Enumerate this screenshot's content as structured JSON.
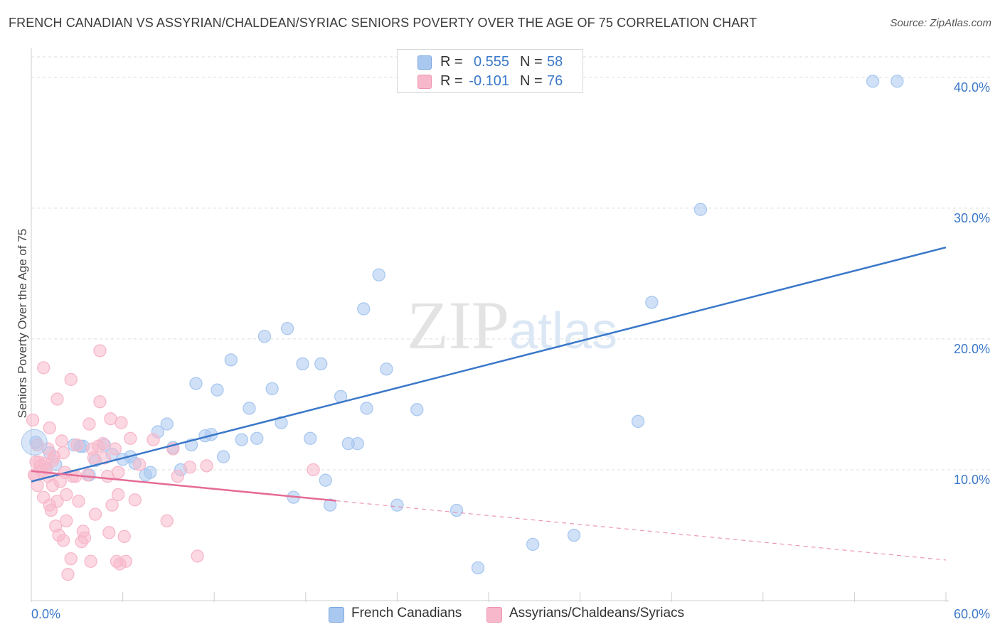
{
  "title": "FRENCH CANADIAN VS ASSYRIAN/CHALDEAN/SYRIAC SENIORS POVERTY OVER THE AGE OF 75 CORRELATION CHART",
  "source": "Source: ZipAtlas.com",
  "watermark": "ZIPatlas",
  "legend": {
    "rows": [
      {
        "r_label": "R =",
        "r_value": "0.555",
        "n_label": "N =",
        "n_value": "58",
        "color": "#a9c8f0"
      },
      {
        "r_label": "R =",
        "r_value": "-0.101",
        "n_label": "N =",
        "n_value": "76",
        "color": "#f7b8cb"
      }
    ]
  },
  "bottom_legend": [
    {
      "label": "French Canadians",
      "color": "#a9c8f0"
    },
    {
      "label": "Assyrians/Chaldeans/Syriacs",
      "color": "#f7b8cb"
    }
  ],
  "chart_data": {
    "type": "scatter",
    "ylabel": "Seniors Poverty Over the Age of 75",
    "xlim": [
      0,
      60
    ],
    "ylim": [
      0,
      42
    ],
    "x_tick_labels": [
      "0.0%",
      "60.0%"
    ],
    "y_ticks": [
      10,
      20,
      30,
      40
    ],
    "y_tick_labels": [
      "10.0%",
      "20.0%",
      "30.0%",
      "40.0%"
    ],
    "grid": "horizontal dashed",
    "series": [
      {
        "name": "French Canadians",
        "color": "#3a78c9",
        "fill": "#a9c8f0",
        "points": [
          [
            0.3,
            12.1
          ],
          [
            1.2,
            11.3
          ],
          [
            1.6,
            10.4
          ],
          [
            2.8,
            11.9
          ],
          [
            3.4,
            11.8
          ],
          [
            3.8,
            9.6
          ],
          [
            4.2,
            10.7
          ],
          [
            4.8,
            11.9
          ],
          [
            5.3,
            11.2
          ],
          [
            6.0,
            10.8
          ],
          [
            6.5,
            11.0
          ],
          [
            6.8,
            10.5
          ],
          [
            7.5,
            9.6
          ],
          [
            7.8,
            9.8
          ],
          [
            8.3,
            12.9
          ],
          [
            8.9,
            13.5
          ],
          [
            9.3,
            11.7
          ],
          [
            9.8,
            10.0
          ],
          [
            10.5,
            11.9
          ],
          [
            10.8,
            16.6
          ],
          [
            11.4,
            12.6
          ],
          [
            11.8,
            12.7
          ],
          [
            12.2,
            16.1
          ],
          [
            12.6,
            11.0
          ],
          [
            13.1,
            18.4
          ],
          [
            13.8,
            12.3
          ],
          [
            14.3,
            14.7
          ],
          [
            14.8,
            12.4
          ],
          [
            15.3,
            20.2
          ],
          [
            15.8,
            16.2
          ],
          [
            16.4,
            13.6
          ],
          [
            16.8,
            20.8
          ],
          [
            17.2,
            7.9
          ],
          [
            17.8,
            18.1
          ],
          [
            18.3,
            12.4
          ],
          [
            19.0,
            18.1
          ],
          [
            19.3,
            9.2
          ],
          [
            19.6,
            7.3
          ],
          [
            20.3,
            15.6
          ],
          [
            20.8,
            12.0
          ],
          [
            21.4,
            12.0
          ],
          [
            21.8,
            22.3
          ],
          [
            22.0,
            14.7
          ],
          [
            22.8,
            24.9
          ],
          [
            23.3,
            17.7
          ],
          [
            24.0,
            7.3
          ],
          [
            25.3,
            14.6
          ],
          [
            27.9,
            6.9
          ],
          [
            29.3,
            2.5
          ],
          [
            32.9,
            4.3
          ],
          [
            35.6,
            5.0
          ],
          [
            39.8,
            13.7
          ],
          [
            40.7,
            22.8
          ],
          [
            43.9,
            29.9
          ],
          [
            55.2,
            39.7
          ],
          [
            56.8,
            39.7
          ],
          [
            3.2,
            11.8
          ],
          [
            1.0,
            10.1
          ]
        ],
        "trend": {
          "x1": 0,
          "y1": 9.1,
          "x2": 60,
          "y2": 27.0,
          "style": "solid"
        }
      },
      {
        "name": "Assyrians/Chaldeans/Syriacs",
        "color": "#e56b96",
        "fill": "#f7b8cb",
        "points": [
          [
            0.1,
            13.8
          ],
          [
            0.2,
            9.6
          ],
          [
            0.3,
            10.6
          ],
          [
            0.4,
            11.9
          ],
          [
            0.4,
            8.8
          ],
          [
            0.6,
            10.3
          ],
          [
            0.7,
            9.9
          ],
          [
            0.8,
            7.9
          ],
          [
            0.8,
            17.8
          ],
          [
            0.9,
            10.5
          ],
          [
            1.0,
            10.1
          ],
          [
            1.1,
            9.5
          ],
          [
            1.1,
            11.6
          ],
          [
            1.2,
            13.2
          ],
          [
            1.2,
            7.3
          ],
          [
            1.3,
            6.9
          ],
          [
            1.4,
            8.8
          ],
          [
            1.4,
            10.7
          ],
          [
            1.6,
            5.7
          ],
          [
            1.7,
            7.6
          ],
          [
            1.7,
            15.4
          ],
          [
            1.8,
            5.0
          ],
          [
            1.9,
            9.1
          ],
          [
            2.0,
            12.2
          ],
          [
            2.1,
            4.6
          ],
          [
            2.1,
            11.3
          ],
          [
            2.2,
            9.8
          ],
          [
            2.3,
            8.1
          ],
          [
            2.3,
            6.1
          ],
          [
            2.4,
            2.0
          ],
          [
            2.6,
            3.2
          ],
          [
            2.6,
            16.9
          ],
          [
            2.7,
            9.5
          ],
          [
            3.0,
            11.9
          ],
          [
            3.1,
            7.6
          ],
          [
            3.3,
            4.5
          ],
          [
            3.4,
            5.3
          ],
          [
            3.5,
            4.8
          ],
          [
            3.7,
            9.6
          ],
          [
            3.8,
            13.5
          ],
          [
            3.9,
            3.0
          ],
          [
            4.0,
            11.6
          ],
          [
            4.1,
            10.9
          ],
          [
            4.4,
            11.8
          ],
          [
            4.5,
            15.2
          ],
          [
            4.5,
            19.1
          ],
          [
            4.7,
            12.0
          ],
          [
            4.8,
            10.9
          ],
          [
            5.0,
            9.5
          ],
          [
            5.1,
            5.2
          ],
          [
            5.2,
            13.9
          ],
          [
            5.3,
            7.3
          ],
          [
            5.5,
            11.6
          ],
          [
            5.6,
            3.0
          ],
          [
            5.7,
            9.8
          ],
          [
            5.7,
            8.1
          ],
          [
            5.8,
            2.8
          ],
          [
            5.9,
            13.6
          ],
          [
            6.1,
            4.9
          ],
          [
            6.2,
            3.0
          ],
          [
            6.5,
            12.4
          ],
          [
            6.8,
            7.7
          ],
          [
            7.1,
            10.4
          ],
          [
            8.0,
            12.3
          ],
          [
            8.9,
            6.1
          ],
          [
            9.3,
            11.6
          ],
          [
            9.6,
            9.5
          ],
          [
            10.4,
            10.2
          ],
          [
            10.9,
            3.4
          ],
          [
            11.5,
            10.3
          ],
          [
            18.5,
            10.0
          ],
          [
            0.5,
            10.6
          ],
          [
            1.5,
            11.0
          ],
          [
            2.9,
            9.5
          ],
          [
            0.2,
            9.6
          ],
          [
            4.2,
            6.6
          ]
        ],
        "trend": {
          "x1": 0,
          "y1": 9.9,
          "x2": 60,
          "y2": 3.1,
          "solid_until": 20,
          "style": "solid-then-dashed"
        }
      }
    ]
  }
}
